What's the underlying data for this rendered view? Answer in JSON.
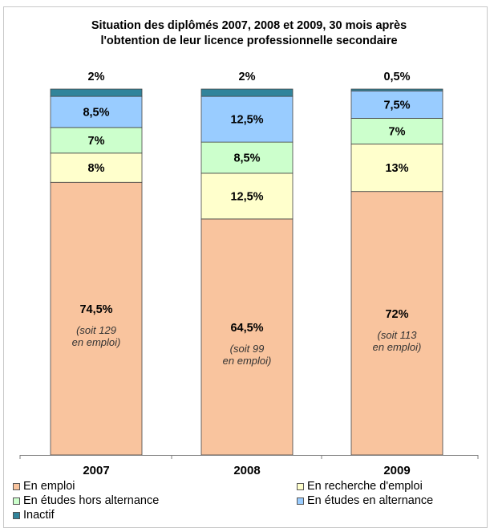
{
  "chart_data": {
    "type": "bar",
    "stacked": true,
    "percent_stacked": true,
    "title": "Situation des diplômés 2007, 2008 et 2009, 30 mois après l'obtention de leur licence professionnelle secondaire",
    "title_lines": [
      "Situation des diplômés 2007, 2008 et 2009, 30 mois après",
      "l'obtention de leur licence professionnelle secondaire"
    ],
    "categories": [
      "2007",
      "2008",
      "2009"
    ],
    "ylim": [
      0,
      100
    ],
    "grid": false,
    "legend_position": "bottom",
    "series": [
      {
        "name": "En emploi",
        "color": "#F9C49E",
        "values": [
          74.5,
          64.5,
          72
        ],
        "labels": [
          "74,5%",
          "64,5%",
          "72%"
        ],
        "notes": [
          [
            "(soit 129",
            "en emploi)"
          ],
          [
            "(soit 99",
            "en emploi)"
          ],
          [
            "(soit 113",
            "en emploi)"
          ]
        ]
      },
      {
        "name": "En recherche d'emploi",
        "color": "#FFFFCC",
        "values": [
          8,
          12.5,
          13
        ],
        "labels": [
          "8%",
          "12,5%",
          "13%"
        ]
      },
      {
        "name": "En études hors alternance",
        "color": "#CCFFCC",
        "values": [
          7,
          8.5,
          7
        ],
        "labels": [
          "7%",
          "8,5%",
          "7%"
        ]
      },
      {
        "name": "En études en alternance",
        "color": "#99CCFF",
        "values": [
          8.5,
          12.5,
          7.5
        ],
        "labels": [
          "8,5%",
          "12,5%",
          "7,5%"
        ]
      },
      {
        "name": "Inactif",
        "color": "#31849B",
        "values": [
          2,
          2,
          0.5
        ],
        "labels": [
          "2%",
          "2%",
          "0,5%"
        ]
      }
    ]
  }
}
